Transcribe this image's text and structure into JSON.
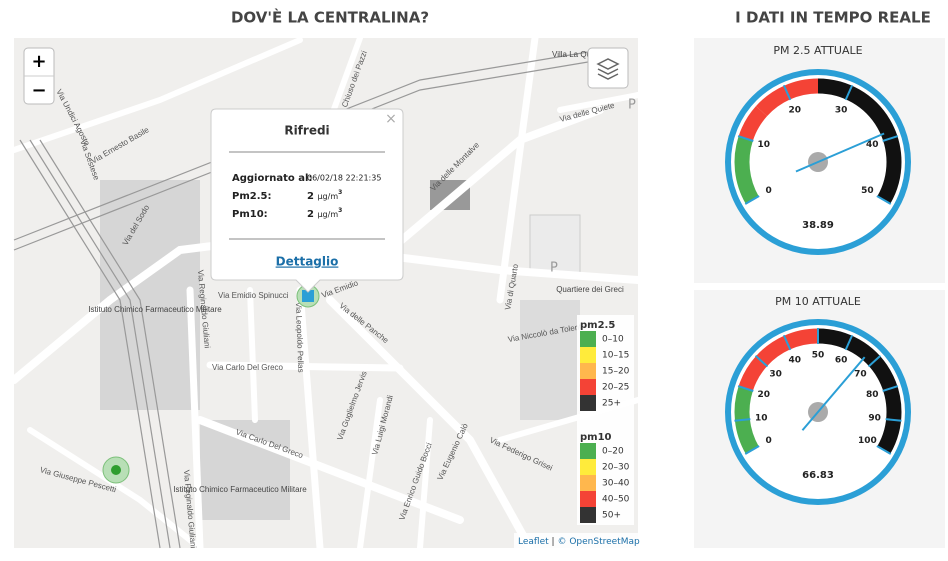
{
  "map_section": {
    "title": "DOV'È LA CENTRALINA?",
    "zoom_in": "+",
    "zoom_out": "−",
    "street_labels": [
      "Via Undici Agosto",
      "Via Ernesto Basile",
      "Via Sestese",
      "Via del Sodo",
      "Via Reginaldo Giuliani",
      "Via Emidio Spinucci",
      "Via Emidio",
      "Via Leopoldo Pellas",
      "Via delle Panche",
      "Via Carlo Del Greco",
      "Via Vittorio Locchi",
      "Via Guglielmo Jervis",
      "Via Luigi Morandi",
      "Via Enrico Guido Bocci",
      "Via Eugenio Calò",
      "Via Federigo Grisei",
      "Via Giuseppe Pescetti",
      "Via Niccolò da Tolentino",
      "Via di Quarto",
      "Via delle Montalve",
      "Via delle Quiete",
      "Via Chiuso dei Pazzi",
      "Via Reginaldo Giuliani"
    ],
    "poi_labels": [
      "Villa La Quiete",
      "Istituto Chimico Farmaceutico Militare",
      "Istituto Chimico Farmaceutico Militare",
      "Quartiere dei Greci",
      "P",
      "P"
    ],
    "popup": {
      "title": "Rifredi",
      "close": "×",
      "updated_label": "Aggiornato al:",
      "updated_value": "06/02/18 22:21:35",
      "pm25_label": "Pm2.5:",
      "pm25_value": "2",
      "pm10_label": "Pm10:",
      "pm10_value": "2",
      "unit": "µg/m",
      "unit_power": "3",
      "link": "Dettaglio"
    },
    "legend": {
      "groups": [
        {
          "title": "pm2.5",
          "items": [
            {
              "label": "0–10",
              "color": "#4caf50"
            },
            {
              "label": "10–15",
              "color": "#ffeb3b"
            },
            {
              "label": "15–20",
              "color": "#ffb74d"
            },
            {
              "label": "20–25",
              "color": "#f44336"
            },
            {
              "label": "25+",
              "color": "#333333"
            }
          ]
        },
        {
          "title": "pm10",
          "items": [
            {
              "label": "0–20",
              "color": "#4caf50"
            },
            {
              "label": "20–30",
              "color": "#ffeb3b"
            },
            {
              "label": "30–40",
              "color": "#ffb74d"
            },
            {
              "label": "40–50",
              "color": "#f44336"
            },
            {
              "label": "50+",
              "color": "#333333"
            }
          ]
        }
      ]
    },
    "attribution": {
      "leaflet": "Leaflet",
      "separator": "|",
      "osm": "© OpenStreetMap"
    }
  },
  "realtime_section": {
    "title": "I DATI IN TEMPO REALE",
    "gauges": [
      {
        "title": "PM 2.5 ATTUALE",
        "value": 38.89,
        "min": 0,
        "max": 50,
        "ticks": [
          0,
          10,
          20,
          30,
          40,
          50
        ],
        "bands": [
          {
            "from": 0,
            "to": 10,
            "color": "#4caf50"
          },
          {
            "from": 10,
            "to": 15,
            "color": "#f44336"
          },
          {
            "from": 15,
            "to": 25,
            "color": "#f44336"
          },
          {
            "from": 25,
            "to": 50,
            "color": "#111111"
          }
        ]
      },
      {
        "title": "PM 10 ATTUALE",
        "value": 66.83,
        "min": 0,
        "max": 100,
        "ticks": [
          0,
          10,
          20,
          30,
          40,
          50,
          60,
          70,
          80,
          90,
          100
        ],
        "bands": [
          {
            "from": 0,
            "to": 20,
            "color": "#4caf50"
          },
          {
            "from": 20,
            "to": 40,
            "color": "#f44336"
          },
          {
            "from": 40,
            "to": 50,
            "color": "#f44336"
          },
          {
            "from": 50,
            "to": 100,
            "color": "#111111"
          }
        ]
      }
    ]
  }
}
